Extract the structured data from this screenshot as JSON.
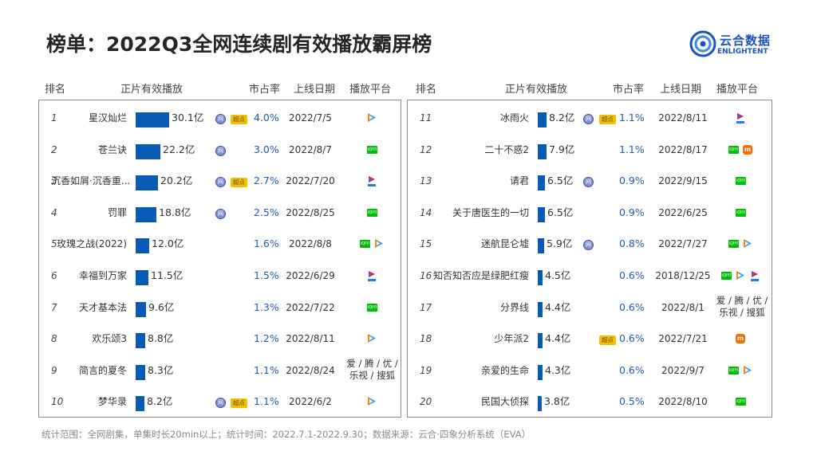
{
  "title": "榜单：2022Q3全网连续剧有效播放霸屏榜",
  "logo": {
    "cn": "云合数据",
    "en": "ENLIGHTENT"
  },
  "headers": {
    "rank": "排名",
    "play": "正片有效播放",
    "share": "市占率",
    "date": "上线日期",
    "platform": "播放平台"
  },
  "badges": {
    "ip": "网",
    "chao": "超点"
  },
  "platform_labels": {
    "iqiyi": "iQIYI",
    "mgtv": "m"
  },
  "max_play_value": 30.1,
  "left_rows": [
    {
      "rank": "1",
      "name": "星汉灿烂",
      "value": 30.1,
      "value_label": "30.1亿",
      "share": "4.0%",
      "date": "2022/7/5",
      "ip_badge": true,
      "chao_badge": true,
      "platforms": [
        "tencent"
      ]
    },
    {
      "rank": "2",
      "name": "苍兰诀",
      "value": 22.2,
      "value_label": "22.2亿",
      "share": "3.0%",
      "date": "2022/8/7",
      "ip_badge": true,
      "chao_badge": false,
      "platforms": [
        "iqiyi"
      ]
    },
    {
      "rank": "3",
      "name": "沉香如屑·沉香重...",
      "value": 20.2,
      "value_label": "20.2亿",
      "share": "2.7%",
      "date": "2022/7/20",
      "ip_badge": true,
      "chao_badge": true,
      "platforms": [
        "youku"
      ]
    },
    {
      "rank": "4",
      "name": "罚罪",
      "value": 18.8,
      "value_label": "18.8亿",
      "share": "2.5%",
      "date": "2022/8/25",
      "ip_badge": true,
      "chao_badge": false,
      "platforms": [
        "iqiyi"
      ]
    },
    {
      "rank": "5",
      "name": "玫瑰之战(2022)",
      "value": 12.0,
      "value_label": "12.0亿",
      "share": "1.6%",
      "date": "2022/8/8",
      "ip_badge": false,
      "chao_badge": false,
      "platforms": [
        "iqiyi",
        "tencent"
      ]
    },
    {
      "rank": "6",
      "name": "幸福到万家",
      "value": 11.5,
      "value_label": "11.5亿",
      "share": "1.5%",
      "date": "2022/6/29",
      "ip_badge": false,
      "chao_badge": false,
      "platforms": [
        "youku"
      ]
    },
    {
      "rank": "7",
      "name": "天才基本法",
      "value": 9.6,
      "value_label": "9.6亿",
      "share": "1.3%",
      "date": "2022/7/22",
      "ip_badge": false,
      "chao_badge": false,
      "platforms": [
        "iqiyi"
      ]
    },
    {
      "rank": "8",
      "name": "欢乐颂3",
      "value": 8.8,
      "value_label": "8.8亿",
      "share": "1.2%",
      "date": "2022/8/11",
      "ip_badge": false,
      "chao_badge": false,
      "platforms": [
        "tencent"
      ]
    },
    {
      "rank": "9",
      "name": "简言的夏冬",
      "value": 8.3,
      "value_label": "8.3亿",
      "share": "1.1%",
      "date": "2022/8/24",
      "ip_badge": false,
      "chao_badge": false,
      "platforms": [],
      "platform_text": [
        "爱 / 腾 / 优 /",
        "乐视 / 搜狐"
      ]
    },
    {
      "rank": "10",
      "name": "梦华录",
      "value": 8.2,
      "value_label": "8.2亿",
      "share": "1.1%",
      "date": "2022/6/2",
      "ip_badge": true,
      "chao_badge": true,
      "platforms": [
        "tencent"
      ]
    }
  ],
  "right_rows": [
    {
      "rank": "11",
      "name": "冰雨火",
      "value": 8.2,
      "value_label": "8.2亿",
      "share": "1.1%",
      "date": "2022/8/11",
      "ip_badge": true,
      "chao_badge": true,
      "platforms": [
        "youku"
      ]
    },
    {
      "rank": "12",
      "name": "二十不惑2",
      "value": 7.9,
      "value_label": "7.9亿",
      "share": "1.1%",
      "date": "2022/8/17",
      "ip_badge": false,
      "chao_badge": false,
      "platforms": [
        "iqiyi",
        "mgtv"
      ]
    },
    {
      "rank": "13",
      "name": "请君",
      "value": 6.5,
      "value_label": "6.5亿",
      "share": "0.9%",
      "date": "2022/9/15",
      "ip_badge": true,
      "chao_badge": false,
      "platforms": [
        "iqiyi"
      ]
    },
    {
      "rank": "14",
      "name": "关于唐医生的一切",
      "value": 6.5,
      "value_label": "6.5亿",
      "share": "0.9%",
      "date": "2022/6/25",
      "ip_badge": false,
      "chao_badge": false,
      "platforms": [
        "iqiyi"
      ]
    },
    {
      "rank": "15",
      "name": "迷航昆仑墟",
      "value": 5.9,
      "value_label": "5.9亿",
      "share": "0.8%",
      "date": "2022/7/27",
      "ip_badge": true,
      "chao_badge": false,
      "platforms": [
        "iqiyi",
        "tencent"
      ]
    },
    {
      "rank": "16",
      "name": "知否知否应是绿肥红瘦",
      "value": 4.5,
      "value_label": "4.5亿",
      "share": "0.6%",
      "date": "2018/12/25",
      "ip_badge": false,
      "chao_badge": false,
      "platforms": [
        "iqiyi",
        "tencent",
        "youku"
      ]
    },
    {
      "rank": "17",
      "name": "分界线",
      "value": 4.4,
      "value_label": "4.4亿",
      "share": "0.6%",
      "date": "2022/8/1",
      "ip_badge": false,
      "chao_badge": false,
      "platforms": [],
      "platform_text": [
        "爱 / 腾 / 优 /",
        "乐视 / 搜狐"
      ]
    },
    {
      "rank": "18",
      "name": "少年派2",
      "value": 4.4,
      "value_label": "4.4亿",
      "share": "0.6%",
      "date": "2022/7/21",
      "ip_badge": false,
      "chao_badge": true,
      "platforms": [
        "mgtv"
      ]
    },
    {
      "rank": "19",
      "name": "亲爱的生命",
      "value": 4.3,
      "value_label": "4.3亿",
      "share": "0.6%",
      "date": "2022/9/7",
      "ip_badge": false,
      "chao_badge": false,
      "platforms": [
        "iqiyi",
        "tencent"
      ]
    },
    {
      "rank": "20",
      "name": "民国大侦探",
      "value": 3.8,
      "value_label": "3.8亿",
      "share": "0.5%",
      "date": "2022/8/10",
      "ip_badge": false,
      "chao_badge": false,
      "platforms": [
        "iqiyi"
      ]
    }
  ],
  "colors": {
    "bar": "#0a5bb5",
    "share_text": "#1f5fb3",
    "brand": "#1a53c4",
    "chao_badge": "#f2c200",
    "iqiyi": "#00be06"
  },
  "footer": "统计范围：全网剧集，单集时长20min以上；统计时间：2022.7.1-2022.9.30；数据来源：云合·四象分析系统（EVA）"
}
